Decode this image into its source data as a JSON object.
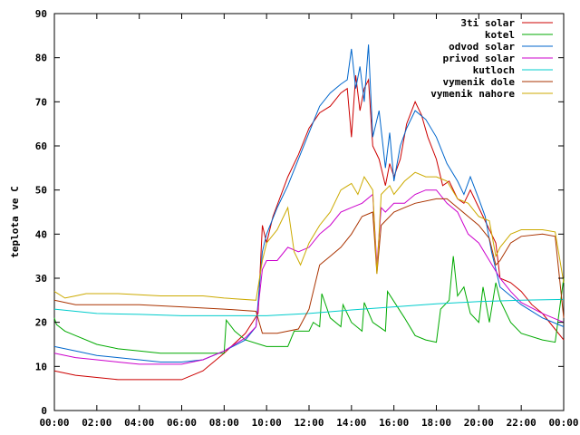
{
  "chart_data": {
    "type": "line",
    "ylabel": "teplota ve C",
    "xlabel": "",
    "title": "",
    "xlim": [
      0,
      24
    ],
    "ylim": [
      0,
      90
    ],
    "x_ticks": [
      {
        "value": 0,
        "label": "00:00"
      },
      {
        "value": 2,
        "label": "02:00"
      },
      {
        "value": 4,
        "label": "04:00"
      },
      {
        "value": 6,
        "label": "06:00"
      },
      {
        "value": 8,
        "label": "08:00"
      },
      {
        "value": 10,
        "label": "10:00"
      },
      {
        "value": 12,
        "label": "12:00"
      },
      {
        "value": 14,
        "label": "14:00"
      },
      {
        "value": 16,
        "label": "16:00"
      },
      {
        "value": 18,
        "label": "18:00"
      },
      {
        "value": 20,
        "label": "20:00"
      },
      {
        "value": 22,
        "label": "22:00"
      },
      {
        "value": 24,
        "label": "00:00"
      }
    ],
    "y_ticks": [
      {
        "value": 0,
        "label": "0"
      },
      {
        "value": 10,
        "label": "10"
      },
      {
        "value": 20,
        "label": "20"
      },
      {
        "value": 30,
        "label": "30"
      },
      {
        "value": 40,
        "label": "40"
      },
      {
        "value": 50,
        "label": "50"
      },
      {
        "value": 60,
        "label": "60"
      },
      {
        "value": 70,
        "label": "70"
      },
      {
        "value": 80,
        "label": "80"
      },
      {
        "value": 90,
        "label": "90"
      }
    ],
    "grid": false,
    "legend_position": "top-right",
    "series": [
      {
        "name": "3ti solar",
        "color": "#cc0000",
        "points": [
          [
            0,
            9
          ],
          [
            1,
            8
          ],
          [
            2,
            7.5
          ],
          [
            3,
            7
          ],
          [
            4,
            7
          ],
          [
            5,
            7
          ],
          [
            6,
            7
          ],
          [
            7,
            9
          ],
          [
            8,
            13
          ],
          [
            9,
            17.5
          ],
          [
            9.6,
            22
          ],
          [
            9.8,
            42
          ],
          [
            10,
            38
          ],
          [
            10.3,
            44
          ],
          [
            11,
            53
          ],
          [
            11.5,
            58
          ],
          [
            12,
            64
          ],
          [
            12.5,
            67.5
          ],
          [
            13,
            69
          ],
          [
            13.5,
            72
          ],
          [
            13.8,
            73
          ],
          [
            14,
            62
          ],
          [
            14.2,
            76
          ],
          [
            14.4,
            68
          ],
          [
            14.6,
            73
          ],
          [
            14.8,
            75
          ],
          [
            15,
            60
          ],
          [
            15.3,
            57
          ],
          [
            15.6,
            51
          ],
          [
            15.8,
            56
          ],
          [
            16,
            53
          ],
          [
            16.3,
            57
          ],
          [
            16.6,
            65
          ],
          [
            17,
            70
          ],
          [
            17.3,
            67
          ],
          [
            17.6,
            62
          ],
          [
            18,
            57
          ],
          [
            18.3,
            51
          ],
          [
            18.6,
            52
          ],
          [
            19,
            48
          ],
          [
            19.3,
            47
          ],
          [
            19.6,
            50
          ],
          [
            20,
            46
          ],
          [
            20.4,
            42
          ],
          [
            20.8,
            38
          ],
          [
            21,
            30
          ],
          [
            21.5,
            29
          ],
          [
            22,
            27
          ],
          [
            22.5,
            24
          ],
          [
            23,
            22
          ],
          [
            23.5,
            19
          ],
          [
            24,
            16
          ]
        ]
      },
      {
        "name": "kotel",
        "color": "#00aa00",
        "points": [
          [
            0,
            21
          ],
          [
            0.1,
            19.5
          ],
          [
            0.5,
            18
          ],
          [
            1,
            17
          ],
          [
            2,
            15
          ],
          [
            3,
            14
          ],
          [
            4,
            13.5
          ],
          [
            5,
            13
          ],
          [
            6,
            13
          ],
          [
            7,
            13
          ],
          [
            8,
            13
          ],
          [
            8.1,
            20.5
          ],
          [
            8.5,
            18
          ],
          [
            9,
            16
          ],
          [
            10,
            14.5
          ],
          [
            11,
            14.5
          ],
          [
            11.3,
            18
          ],
          [
            12,
            18
          ],
          [
            12.2,
            20
          ],
          [
            12.5,
            19
          ],
          [
            12.6,
            26.5
          ],
          [
            13,
            21
          ],
          [
            13.5,
            19
          ],
          [
            13.6,
            24
          ],
          [
            14,
            20
          ],
          [
            14.5,
            18
          ],
          [
            14.6,
            24.5
          ],
          [
            15,
            20
          ],
          [
            15.6,
            18
          ],
          [
            15.7,
            27
          ],
          [
            16.5,
            21
          ],
          [
            17,
            17
          ],
          [
            17.5,
            16
          ],
          [
            18,
            15.5
          ],
          [
            18.2,
            23
          ],
          [
            18.6,
            25
          ],
          [
            18.8,
            35
          ],
          [
            19,
            26
          ],
          [
            19.3,
            28
          ],
          [
            19.6,
            22
          ],
          [
            20,
            20
          ],
          [
            20.2,
            28
          ],
          [
            20.5,
            20
          ],
          [
            20.8,
            29
          ],
          [
            21,
            25
          ],
          [
            21.5,
            20
          ],
          [
            22,
            17.5
          ],
          [
            23,
            16
          ],
          [
            23.6,
            15.5
          ],
          [
            24,
            30
          ]
        ]
      },
      {
        "name": "odvod solar",
        "color": "#0066cc",
        "points": [
          [
            0,
            14.5
          ],
          [
            1,
            13.5
          ],
          [
            2,
            12.5
          ],
          [
            3,
            12
          ],
          [
            4,
            11.5
          ],
          [
            5,
            11
          ],
          [
            6,
            11
          ],
          [
            7,
            11.5
          ],
          [
            8,
            13.5
          ],
          [
            9,
            16
          ],
          [
            9.5,
            19
          ],
          [
            9.8,
            36
          ],
          [
            10,
            40
          ],
          [
            10.5,
            46
          ],
          [
            11,
            51
          ],
          [
            11.5,
            57
          ],
          [
            12,
            63
          ],
          [
            12.5,
            69
          ],
          [
            13,
            72
          ],
          [
            13.5,
            74
          ],
          [
            13.8,
            75
          ],
          [
            14,
            82
          ],
          [
            14.2,
            73
          ],
          [
            14.4,
            78
          ],
          [
            14.6,
            70
          ],
          [
            14.8,
            83
          ],
          [
            15,
            62
          ],
          [
            15.3,
            68
          ],
          [
            15.6,
            55
          ],
          [
            15.8,
            63
          ],
          [
            16,
            52
          ],
          [
            16.3,
            60
          ],
          [
            16.6,
            64
          ],
          [
            17,
            68
          ],
          [
            17.5,
            66
          ],
          [
            18,
            62
          ],
          [
            18.5,
            56
          ],
          [
            19,
            52
          ],
          [
            19.3,
            49
          ],
          [
            19.6,
            53
          ],
          [
            20,
            48
          ],
          [
            20.3,
            44
          ],
          [
            20.6,
            36
          ],
          [
            21,
            28
          ],
          [
            21.5,
            26
          ],
          [
            22,
            24
          ],
          [
            23,
            21
          ],
          [
            24,
            19
          ]
        ]
      },
      {
        "name": "privod solar",
        "color": "#cc00cc",
        "points": [
          [
            0,
            13
          ],
          [
            1,
            12
          ],
          [
            2,
            11.5
          ],
          [
            3,
            11
          ],
          [
            4,
            10.5
          ],
          [
            5,
            10.5
          ],
          [
            6,
            10.5
          ],
          [
            7,
            11.5
          ],
          [
            8,
            13.5
          ],
          [
            9,
            16.5
          ],
          [
            9.5,
            19
          ],
          [
            9.8,
            32
          ],
          [
            10,
            34
          ],
          [
            10.5,
            34
          ],
          [
            11,
            37
          ],
          [
            11.5,
            36
          ],
          [
            12,
            37
          ],
          [
            12.5,
            40
          ],
          [
            13,
            42
          ],
          [
            13.5,
            45
          ],
          [
            14,
            46
          ],
          [
            14.5,
            47
          ],
          [
            15,
            49
          ],
          [
            15.2,
            33
          ],
          [
            15.4,
            46
          ],
          [
            15.6,
            45
          ],
          [
            16,
            47
          ],
          [
            16.5,
            47
          ],
          [
            17,
            49
          ],
          [
            17.5,
            50
          ],
          [
            18,
            50
          ],
          [
            18.5,
            47
          ],
          [
            19,
            45
          ],
          [
            19.5,
            40
          ],
          [
            20,
            38
          ],
          [
            20.5,
            34
          ],
          [
            21,
            30
          ],
          [
            21.5,
            27
          ],
          [
            22,
            24.5
          ],
          [
            23,
            22
          ],
          [
            24,
            20
          ]
        ]
      },
      {
        "name": "kutloch",
        "color": "#00cccc",
        "points": [
          [
            0,
            23
          ],
          [
            2,
            22
          ],
          [
            4,
            21.8
          ],
          [
            6,
            21.5
          ],
          [
            8,
            21.5
          ],
          [
            10,
            21.5
          ],
          [
            12,
            22
          ],
          [
            14,
            22.8
          ],
          [
            16,
            23.5
          ],
          [
            18,
            24.2
          ],
          [
            20,
            24.7
          ],
          [
            22,
            25
          ],
          [
            24,
            25.2
          ]
        ]
      },
      {
        "name": "vymenik dole",
        "color": "#aa3300",
        "points": [
          [
            0,
            25
          ],
          [
            1,
            24
          ],
          [
            2,
            24
          ],
          [
            3,
            24
          ],
          [
            4,
            24
          ],
          [
            6,
            23.5
          ],
          [
            8,
            23
          ],
          [
            9.5,
            22.5
          ],
          [
            9.8,
            17.5
          ],
          [
            10.5,
            17.5
          ],
          [
            11,
            18
          ],
          [
            11.5,
            18.5
          ],
          [
            12,
            23
          ],
          [
            12.5,
            33
          ],
          [
            13,
            35
          ],
          [
            13.5,
            37
          ],
          [
            14,
            40
          ],
          [
            14.5,
            44
          ],
          [
            15,
            45
          ],
          [
            15.2,
            31
          ],
          [
            15.4,
            42
          ],
          [
            16,
            45
          ],
          [
            16.5,
            46
          ],
          [
            17,
            47
          ],
          [
            18,
            48
          ],
          [
            18.5,
            48
          ],
          [
            19,
            46
          ],
          [
            19.5,
            44
          ],
          [
            20,
            42
          ],
          [
            20.5,
            39
          ],
          [
            20.8,
            33
          ],
          [
            21,
            34
          ],
          [
            21.5,
            38
          ],
          [
            22,
            39.5
          ],
          [
            23,
            40
          ],
          [
            23.6,
            39.5
          ],
          [
            24,
            21
          ]
        ]
      },
      {
        "name": "vymenik nahore",
        "color": "#ccaa00",
        "points": [
          [
            0,
            27
          ],
          [
            0.5,
            25.5
          ],
          [
            1,
            26
          ],
          [
            1.5,
            26.5
          ],
          [
            3,
            26.5
          ],
          [
            5,
            26
          ],
          [
            7,
            26
          ],
          [
            8,
            25.5
          ],
          [
            9.5,
            25
          ],
          [
            9.8,
            34
          ],
          [
            10,
            38
          ],
          [
            10.5,
            41
          ],
          [
            11,
            46
          ],
          [
            11.3,
            36
          ],
          [
            11.6,
            33
          ],
          [
            12,
            38
          ],
          [
            12.5,
            42
          ],
          [
            13,
            45
          ],
          [
            13.5,
            50
          ],
          [
            14,
            51.5
          ],
          [
            14.3,
            49
          ],
          [
            14.6,
            53
          ],
          [
            15,
            50
          ],
          [
            15.2,
            31
          ],
          [
            15.4,
            49
          ],
          [
            15.8,
            51
          ],
          [
            16,
            49
          ],
          [
            16.5,
            52
          ],
          [
            17,
            54
          ],
          [
            17.5,
            53
          ],
          [
            18,
            53
          ],
          [
            18.5,
            52
          ],
          [
            19,
            48
          ],
          [
            19.5,
            47
          ],
          [
            20,
            44
          ],
          [
            20.5,
            43
          ],
          [
            20.8,
            35
          ],
          [
            21,
            37
          ],
          [
            21.5,
            40
          ],
          [
            22,
            41
          ],
          [
            23,
            41
          ],
          [
            23.6,
            40.5
          ],
          [
            24,
            29
          ]
        ]
      }
    ]
  }
}
